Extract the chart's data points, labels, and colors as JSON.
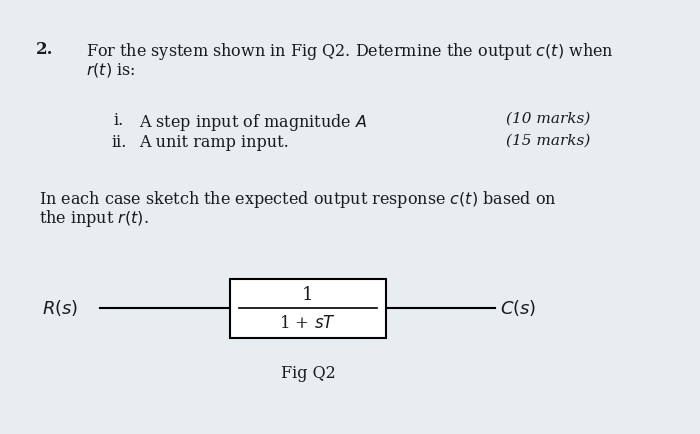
{
  "background_color": "#e8edf2",
  "text_color": "#1a1a1a",
  "question_number": "2.",
  "question_text_line1": "For the system shown in Fig Q2. Determine the output $c(t)$ when",
  "question_text_line2": "$r(t)$ is:",
  "item_i_label": "i.",
  "item_i": "A step input of magnitude $A$",
  "item_ii_label": "ii.",
  "item_ii": "A unit ramp input.",
  "marks_i": "(10 marks)",
  "marks_ii": "(15 marks)",
  "body_text_line1": "In each case sketch the expected output response $c(t)$ based on",
  "body_text_line2": "the input $r(t)$.",
  "block_numerator": "1",
  "block_denominator": "1 + $sT$",
  "label_input": "$R(s)$",
  "label_output": "$C(s)$",
  "fig_caption": "Fig Q2",
  "font_size_main": 11.5,
  "font_size_marks": 11,
  "font_size_block": 13,
  "font_size_qnum": 12
}
